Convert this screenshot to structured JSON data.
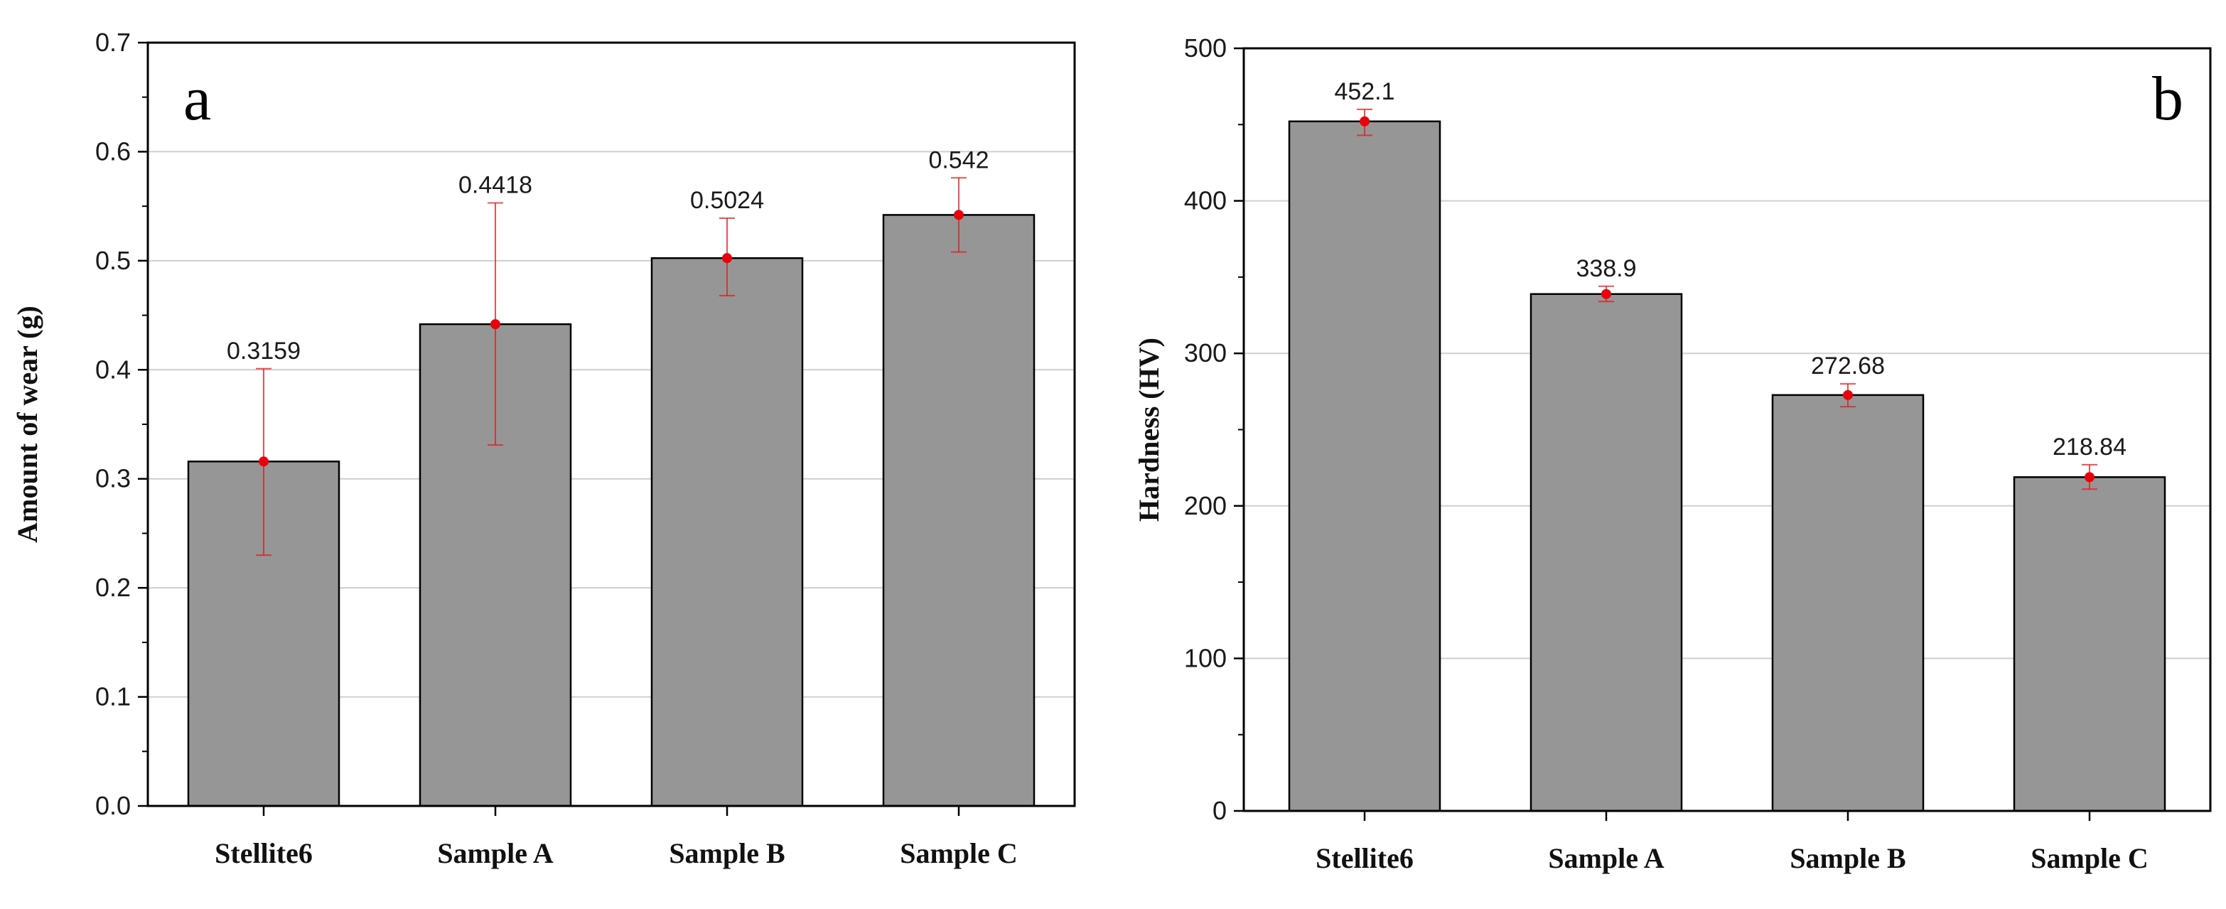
{
  "chart_data": [
    {
      "type": "bar",
      "panel_label": "a",
      "categories": [
        "Stellite6",
        "Sample A",
        "Sample B",
        "Sample C"
      ],
      "values": [
        0.3159,
        0.4418,
        0.5024,
        0.542
      ],
      "value_labels": [
        "0.3159",
        "0.4418",
        "0.5024",
        "0.542"
      ],
      "error_low": [
        0.23,
        0.331,
        0.468,
        0.508
      ],
      "error_high": [
        0.401,
        0.553,
        0.539,
        0.576
      ],
      "title": "",
      "xlabel": "",
      "ylabel": "Amount of wear (g)",
      "ylim": [
        0,
        0.7
      ],
      "yticks": [
        "0.0",
        "0.1",
        "0.2",
        "0.3",
        "0.4",
        "0.5",
        "0.6",
        "0.7"
      ],
      "grid": true,
      "bar_color": "#969696",
      "error_color": "#e31a1c"
    },
    {
      "type": "bar",
      "panel_label": "b",
      "categories": [
        "Stellite6",
        "Sample A",
        "Sample B",
        "Sample C"
      ],
      "values": [
        452.1,
        338.9,
        272.68,
        218.84
      ],
      "value_labels": [
        "452.1",
        "338.9",
        "272.68",
        "218.84"
      ],
      "error_low": [
        443,
        334,
        265,
        211
      ],
      "error_high": [
        460,
        344,
        280,
        227
      ],
      "title": "",
      "xlabel": "",
      "ylabel": "Hardness (HV)",
      "ylim": [
        0,
        500
      ],
      "yticks": [
        "0",
        "100",
        "200",
        "300",
        "400",
        "500"
      ],
      "grid": true,
      "bar_color": "#969696",
      "error_color": "#e31a1c"
    }
  ]
}
